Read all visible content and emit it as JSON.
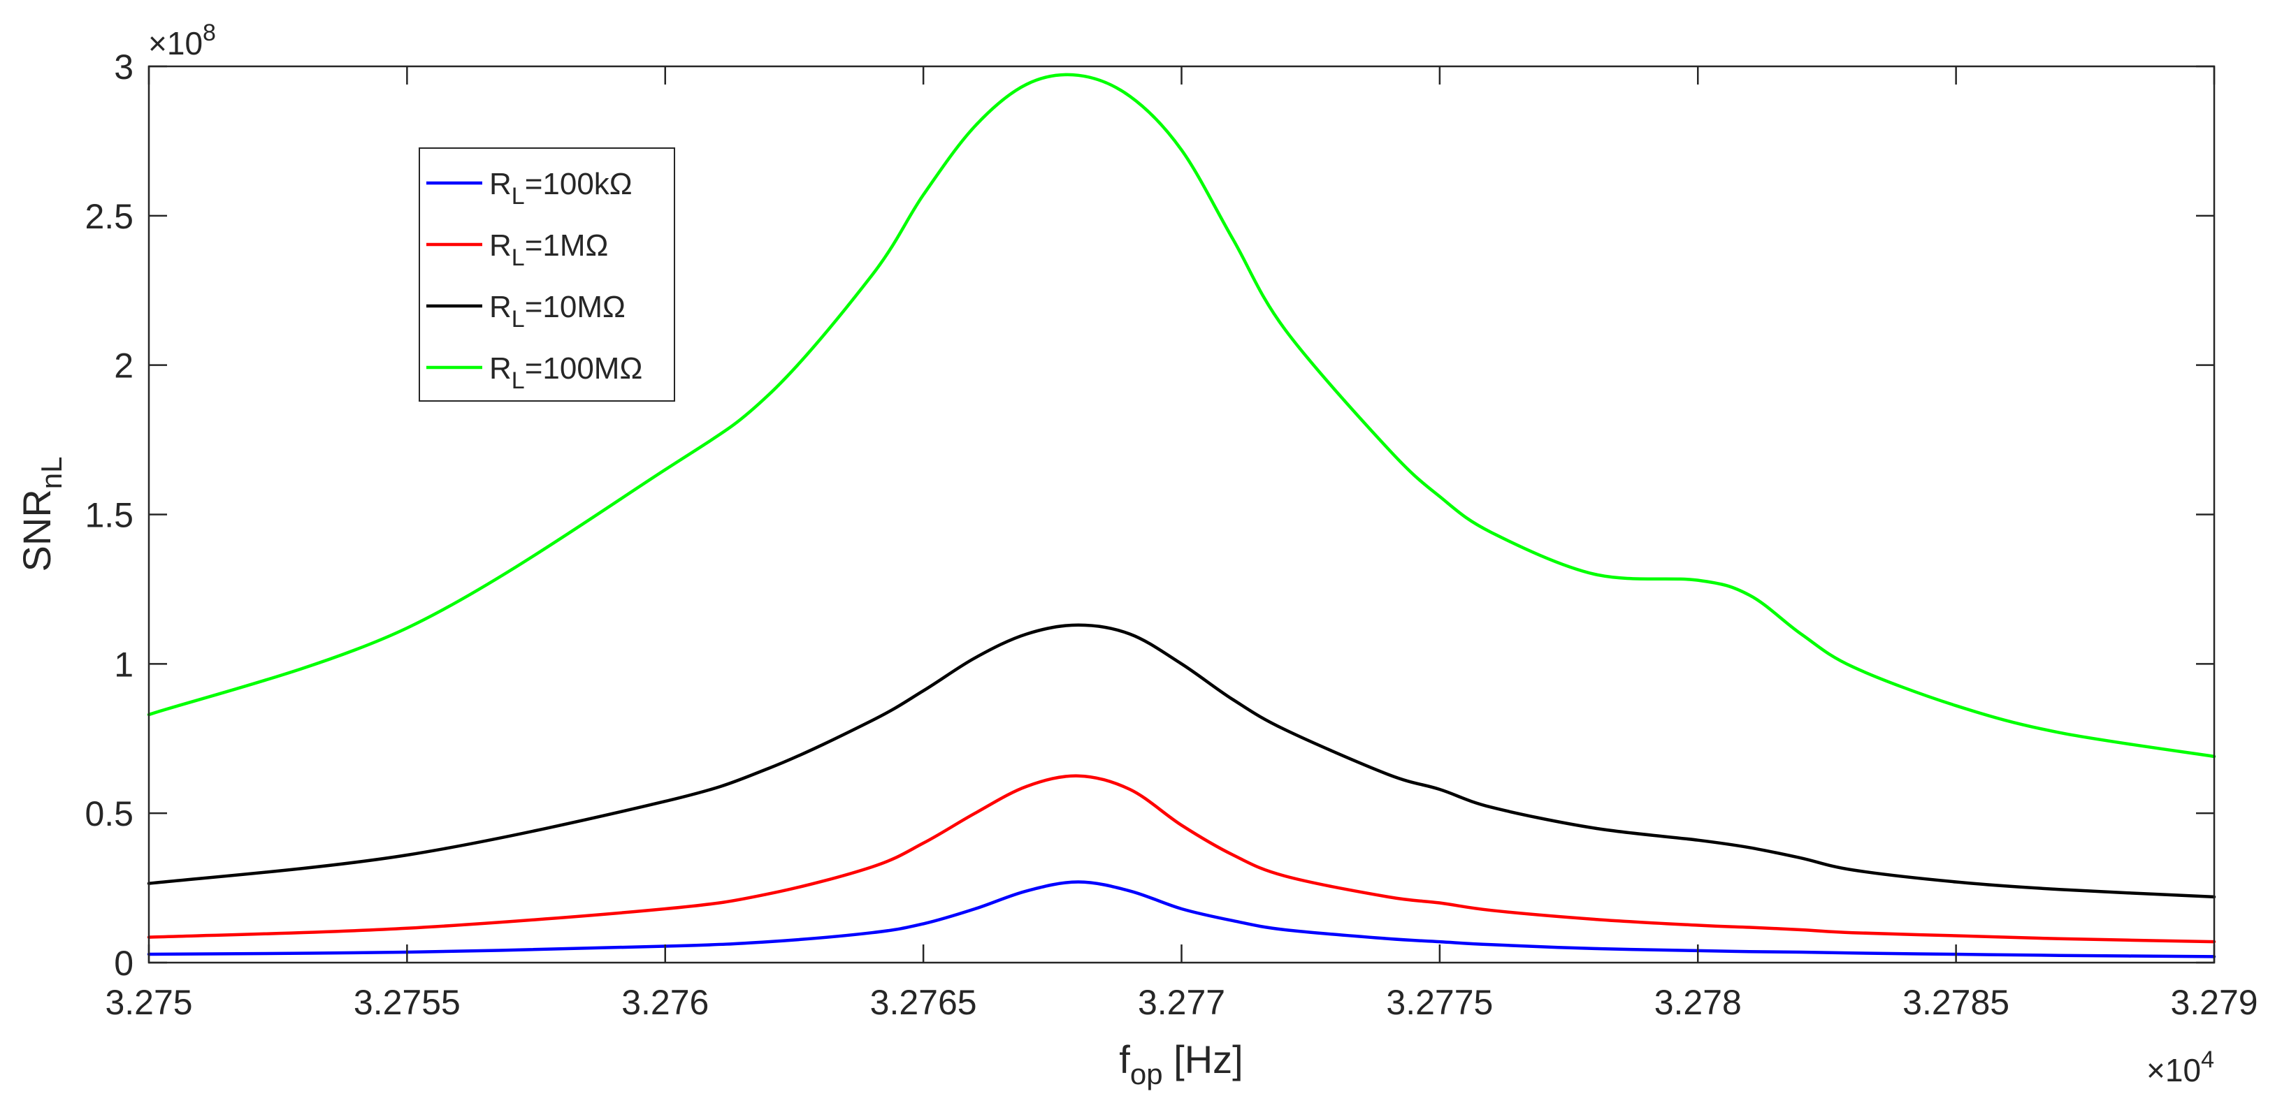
{
  "chart_data": {
    "type": "line",
    "title": "",
    "xlabel": {
      "main": "f",
      "sub": "op",
      "unit": " [Hz]"
    },
    "ylabel": {
      "main": "SNR",
      "sub": "nL"
    },
    "x_multiplier": {
      "prefix": "×10",
      "exponent": "4"
    },
    "y_multiplier": {
      "prefix": "×10",
      "exponent": "8"
    },
    "xlim": [
      3.275,
      3.279
    ],
    "ylim": [
      0,
      3
    ],
    "x_ticks": [
      3.275,
      3.2755,
      3.276,
      3.2765,
      3.277,
      3.2775,
      3.278,
      3.2785,
      3.279
    ],
    "x_tick_labels": [
      "3.275",
      "3.2755",
      "3.276",
      "3.2765",
      "3.277",
      "3.2775",
      "3.278",
      "3.2785",
      "3.279"
    ],
    "y_ticks": [
      0,
      0.5,
      1,
      1.5,
      2,
      2.5,
      3
    ],
    "y_tick_labels": [
      "0",
      "0.5",
      "1",
      "1.5",
      "2",
      "2.5",
      "3"
    ],
    "grid": false,
    "legend_position": "top-left",
    "x": [
      3.275,
      3.2755,
      3.276,
      3.2762,
      3.2764,
      3.2765,
      3.2766,
      3.2767,
      3.2768,
      3.2769,
      3.277,
      3.2771,
      3.2772,
      3.2774,
      3.2775,
      3.2776,
      3.2778,
      3.278,
      3.2781,
      3.2782,
      3.2783,
      3.2785,
      3.2787,
      3.279
    ],
    "series": [
      {
        "name": "100kΩ",
        "legend": {
          "main": "R",
          "sub": "L",
          "rest": "=100kΩ"
        },
        "color": "#0000ff",
        "values": [
          0.028,
          0.035,
          0.055,
          0.07,
          0.1,
          0.13,
          0.18,
          0.24,
          0.27,
          0.24,
          0.18,
          0.14,
          0.11,
          0.08,
          0.07,
          0.06,
          0.047,
          0.04,
          0.037,
          0.035,
          0.032,
          0.028,
          0.024,
          0.02
        ]
      },
      {
        "name": "1MΩ",
        "legend": {
          "main": "R",
          "sub": "L",
          "rest": "=1MΩ"
        },
        "color": "#ff0000",
        "values": [
          0.085,
          0.115,
          0.18,
          0.23,
          0.32,
          0.4,
          0.5,
          0.59,
          0.625,
          0.58,
          0.46,
          0.36,
          0.29,
          0.22,
          0.2,
          0.175,
          0.145,
          0.125,
          0.118,
          0.11,
          0.1,
          0.09,
          0.08,
          0.07
        ]
      },
      {
        "name": "10MΩ",
        "legend": {
          "main": "R",
          "sub": "L",
          "rest": "=10MΩ"
        },
        "color": "#000000",
        "values": [
          0.265,
          0.36,
          0.54,
          0.65,
          0.81,
          0.91,
          1.02,
          1.1,
          1.13,
          1.1,
          1.0,
          0.88,
          0.78,
          0.63,
          0.58,
          0.52,
          0.45,
          0.41,
          0.385,
          0.35,
          0.31,
          0.27,
          0.245,
          0.22
        ]
      },
      {
        "name": "100MΩ",
        "legend": {
          "main": "R",
          "sub": "L",
          "rest": "=100MΩ"
        },
        "color": "#00ff00",
        "values": [
          0.83,
          1.12,
          1.65,
          1.9,
          2.3,
          2.57,
          2.8,
          2.94,
          2.97,
          2.9,
          2.72,
          2.42,
          2.12,
          1.72,
          1.56,
          1.44,
          1.3,
          1.28,
          1.23,
          1.1,
          0.99,
          0.86,
          0.77,
          0.69
        ]
      }
    ]
  }
}
